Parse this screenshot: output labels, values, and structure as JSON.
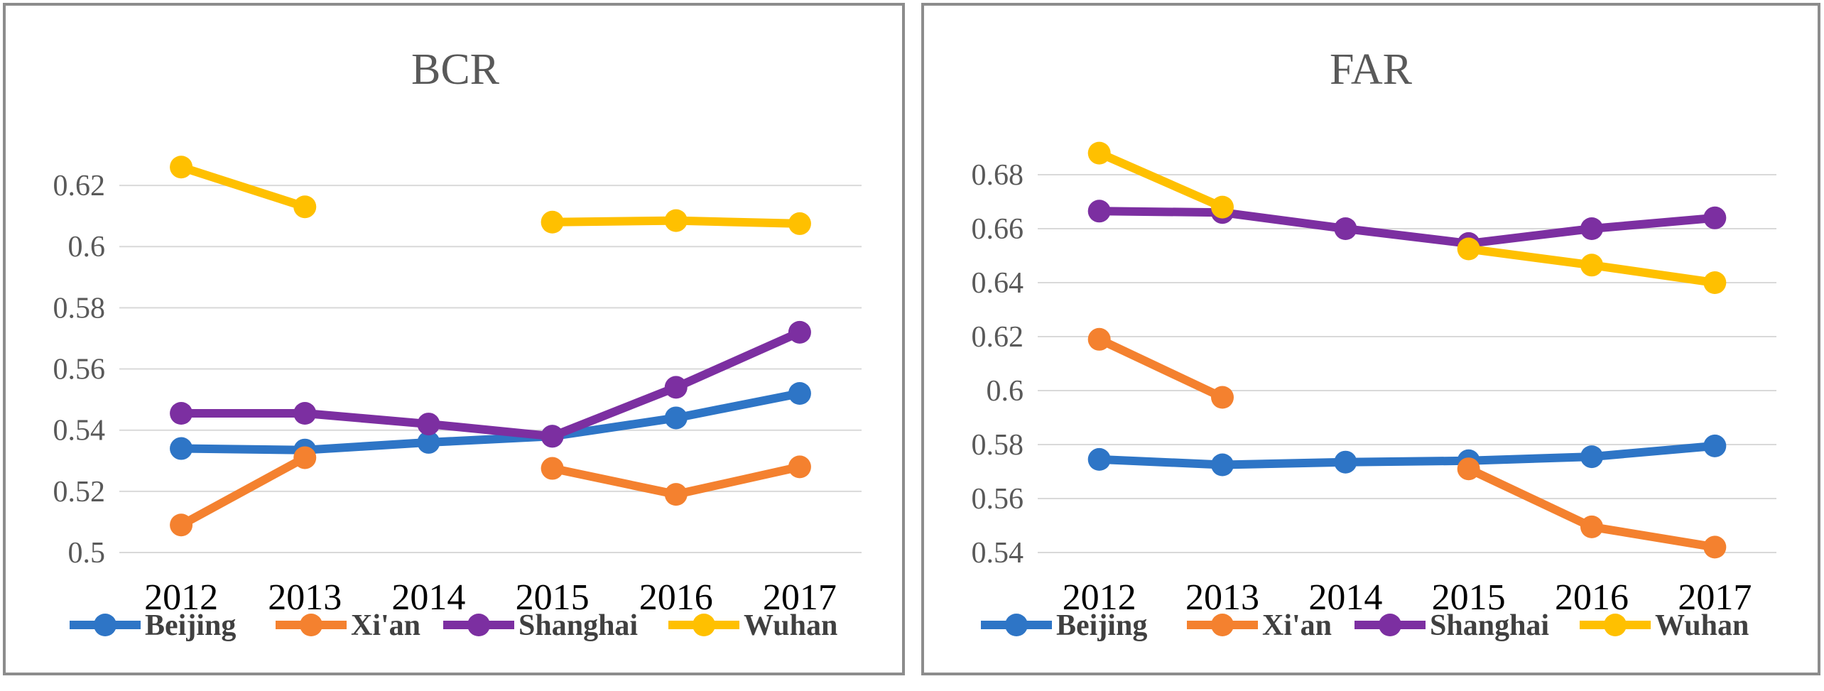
{
  "chart_data": [
    {
      "type": "line",
      "title": "BCR",
      "categories": [
        "2012",
        "2013",
        "2014",
        "2015",
        "2016",
        "2017"
      ],
      "ylim": [
        0.5,
        0.63
      ],
      "yticks": [
        "0.5",
        "0.52",
        "0.54",
        "0.56",
        "0.58",
        "0.6",
        "0.62"
      ],
      "ytick_values": [
        0.5,
        0.52,
        0.54,
        0.56,
        0.58,
        0.6,
        0.62
      ],
      "grid": true,
      "legend_position": "bottom",
      "series": [
        {
          "name": "Beijing",
          "color": "#2e75c6",
          "values": [
            0.534,
            0.5335,
            0.536,
            0.538,
            0.544,
            0.552
          ]
        },
        {
          "name": "Xi'an",
          "color": "#f4812f",
          "values": [
            0.509,
            0.531,
            null,
            0.5275,
            0.519,
            0.528
          ]
        },
        {
          "name": "Shanghai",
          "color": "#7c2fa1",
          "values": [
            0.5455,
            0.5455,
            0.542,
            0.538,
            0.554,
            0.572
          ]
        },
        {
          "name": "Wuhan",
          "color": "#ffc000",
          "values": [
            0.626,
            0.613,
            null,
            0.608,
            0.6085,
            0.6075
          ]
        }
      ]
    },
    {
      "type": "line",
      "title": "FAR",
      "categories": [
        "2012",
        "2013",
        "2014",
        "2015",
        "2016",
        "2017"
      ],
      "ylim": [
        0.54,
        0.69
      ],
      "yticks": [
        "0.54",
        "0.56",
        "0.58",
        "0.6",
        "0.62",
        "0.64",
        "0.66",
        "0.68"
      ],
      "ytick_values": [
        0.54,
        0.56,
        0.58,
        0.6,
        0.62,
        0.64,
        0.66,
        0.68
      ],
      "grid": true,
      "legend_position": "bottom",
      "series": [
        {
          "name": "Beijing",
          "color": "#2e75c6",
          "values": [
            0.5745,
            0.5725,
            0.5735,
            0.574,
            0.5755,
            0.5795
          ]
        },
        {
          "name": "Xi'an",
          "color": "#f4812f",
          "values": [
            0.619,
            0.5975,
            null,
            0.571,
            0.5495,
            0.542
          ]
        },
        {
          "name": "Shanghai",
          "color": "#7c2fa1",
          "values": [
            0.6665,
            0.666,
            0.66,
            0.6545,
            0.66,
            0.664
          ]
        },
        {
          "name": "Wuhan",
          "color": "#ffc000",
          "values": [
            0.688,
            0.668,
            null,
            0.6525,
            0.6465,
            0.64
          ]
        }
      ]
    }
  ]
}
